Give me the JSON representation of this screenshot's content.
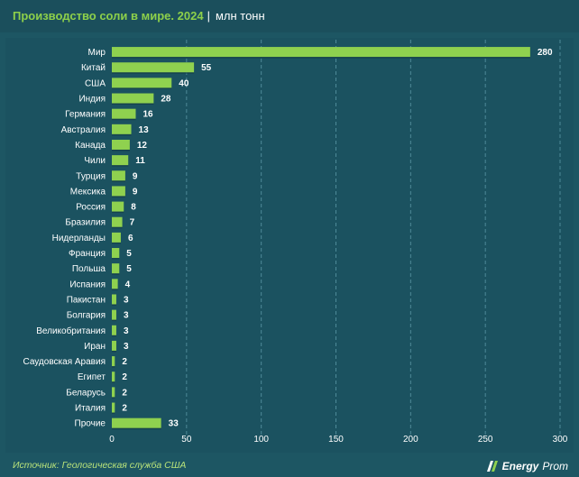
{
  "header": {
    "title": "Производство соли в мире. 2024",
    "separator": "|",
    "unit": "млн тонн"
  },
  "footer": {
    "source": "Источник: Геологическая служба США",
    "logo_bold": "Energy",
    "logo_normal": "Prom"
  },
  "colors": {
    "bar": "#8fd14f",
    "value_label": "#ffffff",
    "category_label": "#ffffff",
    "grid": "#4e8a98"
  },
  "chart_data": {
    "type": "bar",
    "orientation": "horizontal",
    "categories": [
      "Мир",
      "Китай",
      "США",
      "Индия",
      "Германия",
      "Австралия",
      "Канада",
      "Чили",
      "Турция",
      "Мексика",
      "Россия",
      "Бразилия",
      "Нидерланды",
      "Франция",
      "Польша",
      "Испания",
      "Пакистан",
      "Болгария",
      "Великобритания",
      "Иран",
      "Саудовская Аравия",
      "Египет",
      "Беларусь",
      "Италия",
      "Прочие"
    ],
    "values": [
      280,
      55,
      40,
      28,
      16,
      13,
      12,
      11,
      9,
      9,
      8,
      7,
      6,
      5,
      5,
      4,
      3,
      3,
      3,
      3,
      2,
      2,
      2,
      2,
      33
    ],
    "xlim": [
      0,
      300
    ],
    "xticks": [
      0,
      50,
      100,
      150,
      200,
      250,
      300
    ],
    "grid": true,
    "grid_style": "dashed vertical"
  }
}
